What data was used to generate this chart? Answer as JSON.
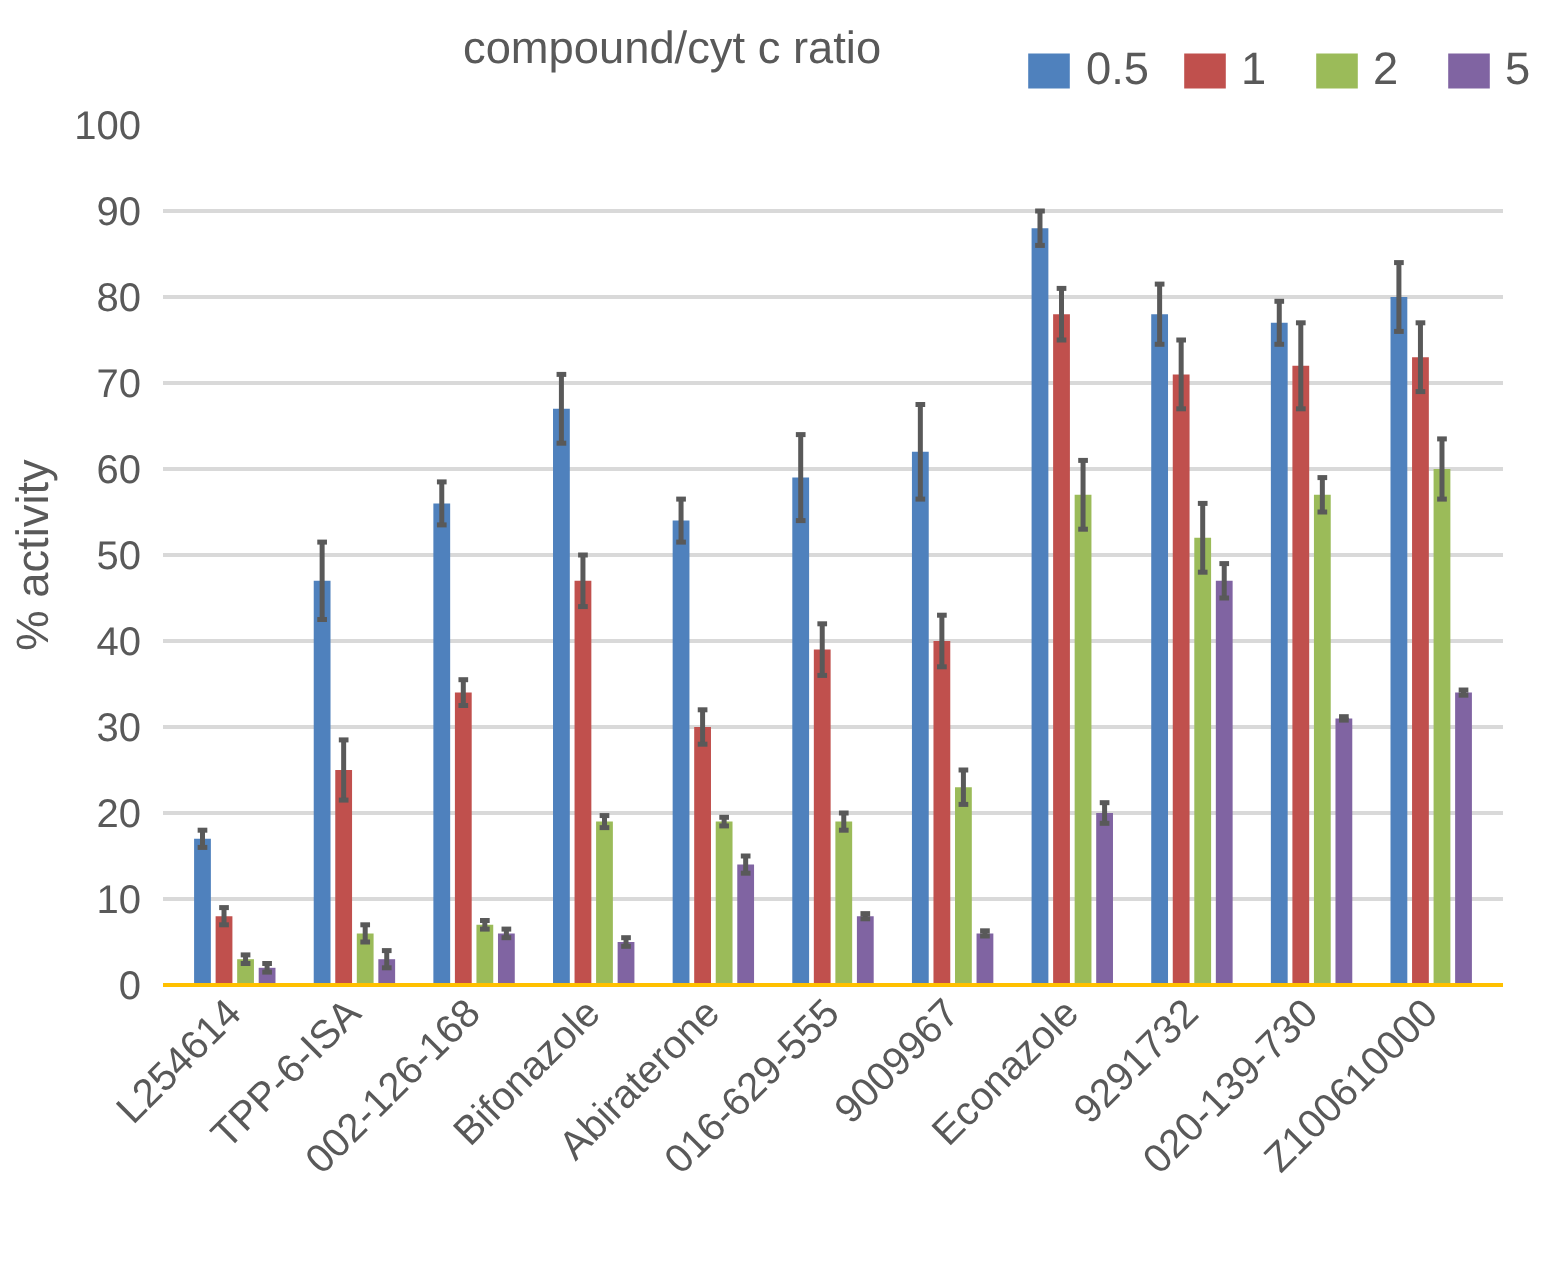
{
  "chart_data": {
    "type": "bar",
    "ylabel": "% activity",
    "legend_title": "compound/cyt c ratio",
    "legend": "top",
    "grid": "y",
    "categories": [
      "L254614",
      "TPP-6-ISA",
      "002-126-168",
      "Bifonazole",
      "Abiraterone",
      "016-629-555",
      "9009967",
      "Econazole",
      "9291732",
      "020-139-730",
      "Z100610000"
    ],
    "ylim": [
      0,
      100
    ],
    "yticks": [
      0,
      10,
      20,
      30,
      40,
      50,
      60,
      70,
      80,
      90,
      100
    ],
    "series": [
      {
        "name": "0.5",
        "color": "#4f81bd",
        "values": [
          17,
          47,
          56,
          67,
          54,
          59,
          62,
          88,
          78,
          77,
          80
        ],
        "errors": [
          1,
          4.5,
          2.5,
          4,
          2.5,
          5,
          5.5,
          2,
          3.5,
          2.5,
          4
        ]
      },
      {
        "name": "1",
        "color": "#c0504d",
        "values": [
          8,
          25,
          34,
          47,
          30,
          39,
          40,
          78,
          71,
          72,
          73
        ],
        "errors": [
          1,
          3.5,
          1.5,
          3,
          2,
          3,
          3,
          3,
          4,
          5,
          4
        ]
      },
      {
        "name": "2",
        "color": "#9bbb59",
        "values": [
          3,
          6,
          7,
          19,
          19,
          19,
          23,
          57,
          52,
          57,
          60
        ],
        "errors": [
          0.5,
          1,
          0.5,
          0.7,
          0.5,
          1,
          2,
          4,
          4,
          2,
          3.5
        ]
      },
      {
        "name": "5",
        "color": "#8064a2",
        "values": [
          2,
          3,
          6,
          5,
          14,
          8,
          6,
          20,
          47,
          31,
          34
        ],
        "errors": [
          0.5,
          1,
          0.5,
          0.5,
          1,
          0.3,
          0.3,
          1.2,
          2,
          0.2,
          0.3
        ]
      }
    ]
  }
}
